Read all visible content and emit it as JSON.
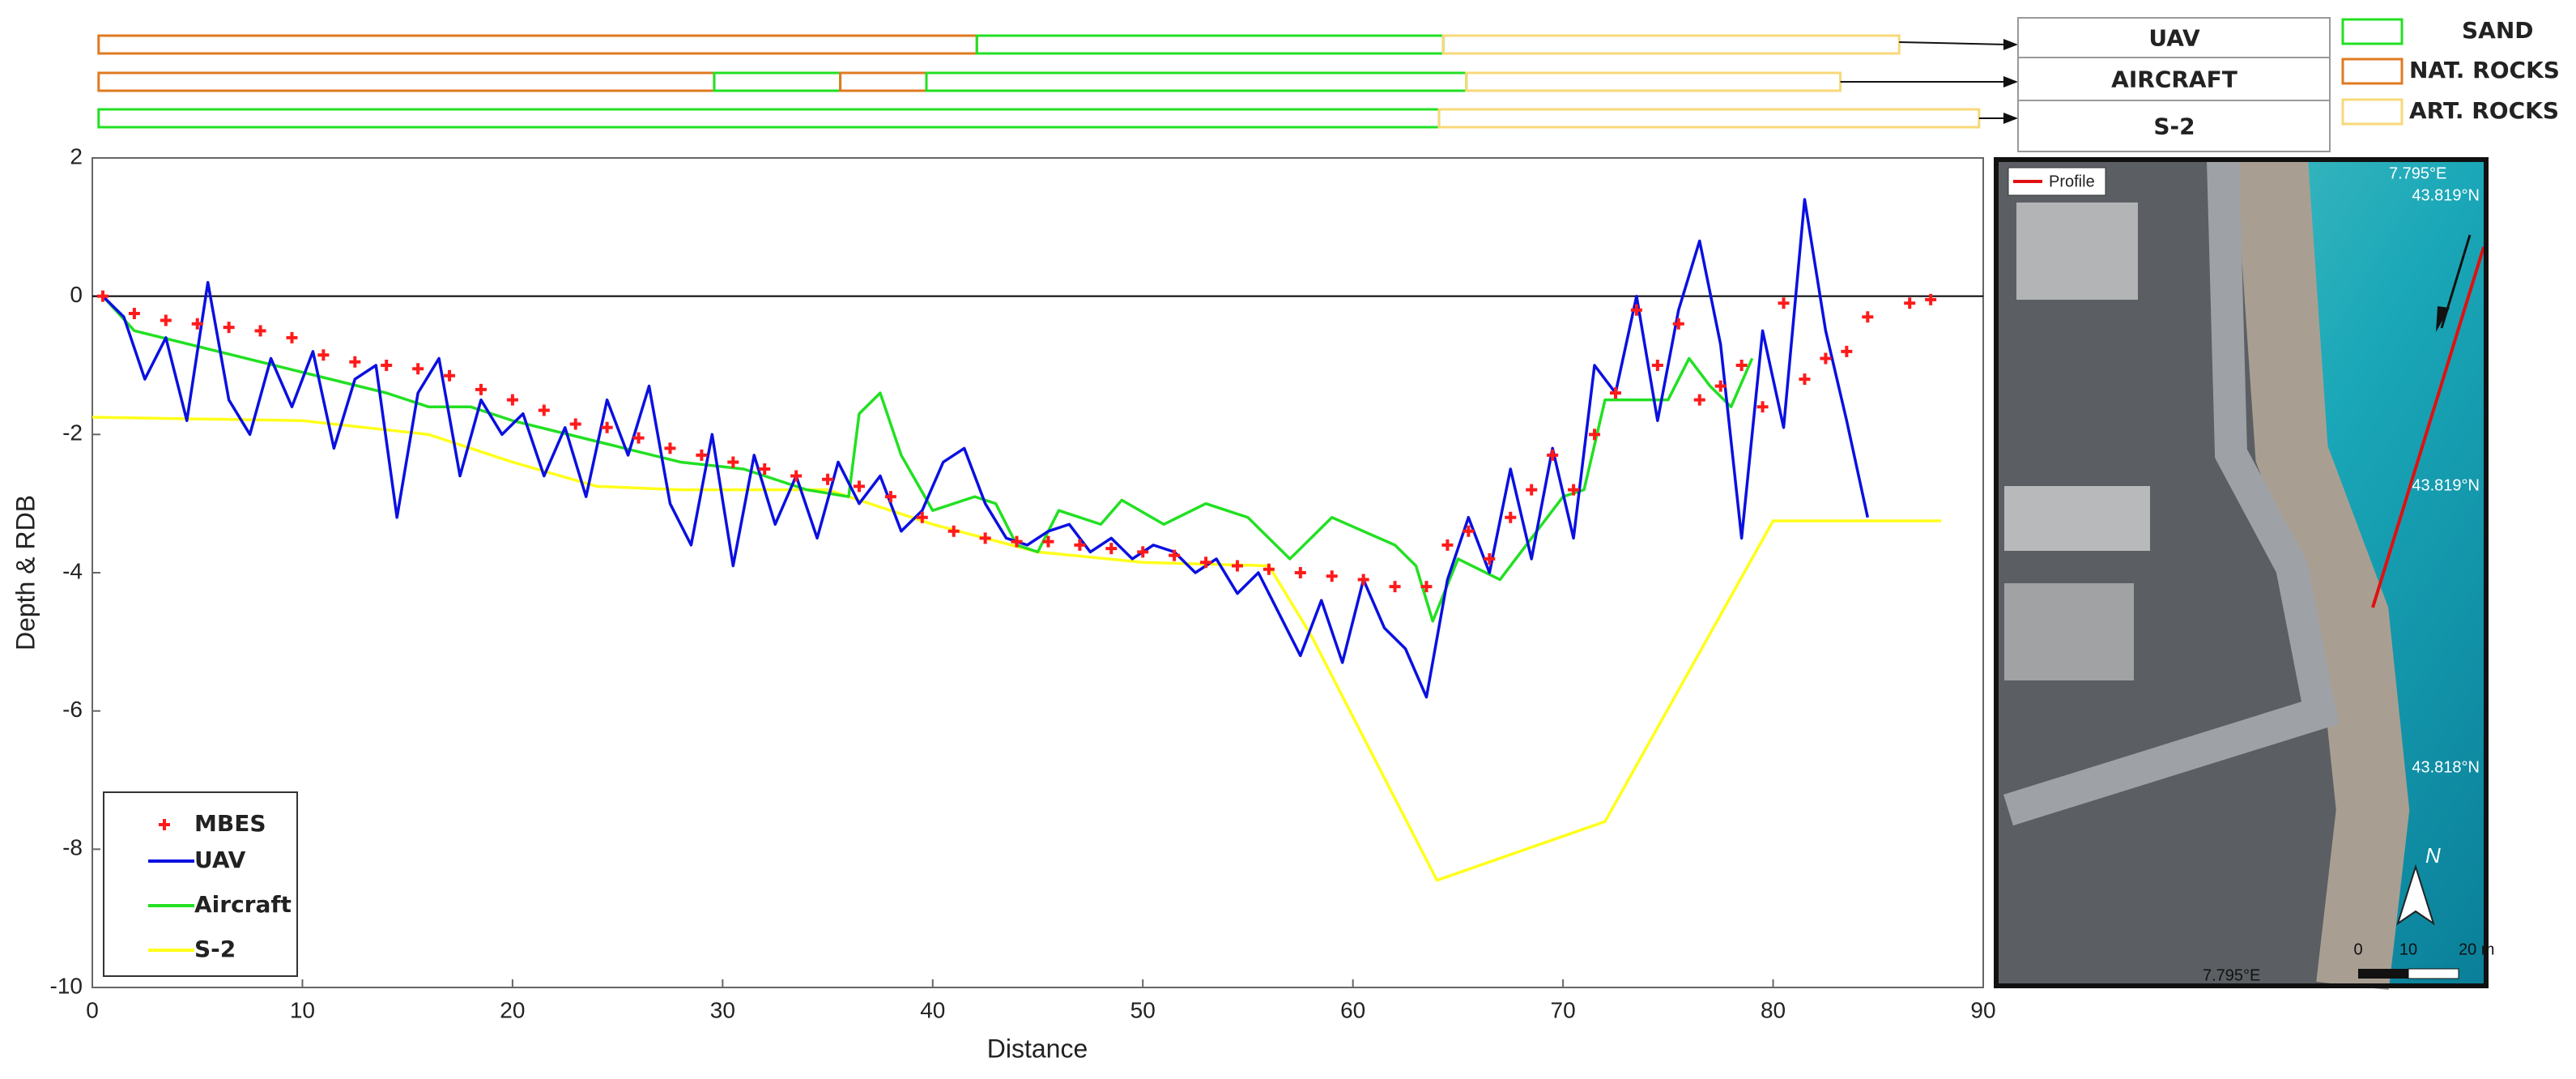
{
  "chart_data": {
    "type": "line",
    "xlabel": "Distance",
    "ylabel": "Depth & RDB",
    "xlim": [
      0,
      90
    ],
    "xticks": [
      0,
      10,
      20,
      30,
      40,
      50,
      60,
      70,
      80,
      90
    ],
    "ylim": [
      -10,
      2
    ],
    "yticks": [
      -10,
      -8,
      -6,
      -4,
      -2,
      0,
      2
    ],
    "zero_line": true,
    "legend": "lower left",
    "series": [
      {
        "name": "MBES",
        "color": "#ff1a1a",
        "mode": "markers",
        "x": [
          0.5,
          2,
          3.5,
          5,
          6.5,
          8,
          9.5,
          11,
          12.5,
          14,
          15.5,
          17,
          18.5,
          20,
          21.5,
          23,
          24.5,
          26,
          27.5,
          29,
          30.5,
          32,
          33.5,
          35,
          36.5,
          38,
          39.5,
          41,
          42.5,
          44,
          45.5,
          47,
          48.5,
          50,
          51.5,
          53,
          54.5,
          56,
          57.5,
          59,
          60.5,
          62,
          63.5,
          64.5,
          65.5,
          66.5,
          67.5,
          68.5,
          69.5,
          70.5,
          71.5,
          72.5,
          73.5,
          74.5,
          75.5,
          76.5,
          77.5,
          78.5,
          79.5,
          80.5,
          81.5,
          82.5,
          83.5,
          84.5,
          86.5,
          87.5
        ],
        "values": [
          0,
          -0.25,
          -0.35,
          -0.4,
          -0.45,
          -0.5,
          -0.6,
          -0.85,
          -0.95,
          -1.0,
          -1.05,
          -1.15,
          -1.35,
          -1.5,
          -1.65,
          -1.85,
          -1.9,
          -2.05,
          -2.2,
          -2.3,
          -2.4,
          -2.5,
          -2.6,
          -2.65,
          -2.75,
          -2.9,
          -3.2,
          -3.4,
          -3.5,
          -3.55,
          -3.55,
          -3.6,
          -3.65,
          -3.7,
          -3.75,
          -3.85,
          -3.9,
          -3.95,
          -4.0,
          -4.05,
          -4.1,
          -4.2,
          -4.2,
          -3.6,
          -3.4,
          -3.8,
          -3.2,
          -2.8,
          -2.3,
          -2.8,
          -2.0,
          -1.4,
          -0.2,
          -1.0,
          -0.4,
          -1.5,
          -1.3,
          -1.0,
          -1.6,
          -0.1,
          -1.2,
          -0.9,
          -0.8,
          -0.3,
          -0.1,
          -0.05
        ]
      },
      {
        "name": "UAV",
        "color": "#0a10e0",
        "mode": "line",
        "x": [
          0.5,
          1.5,
          2.5,
          3.5,
          4.5,
          5.5,
          6.5,
          7.5,
          8.5,
          9.5,
          10.5,
          11.5,
          12.5,
          13.5,
          14.5,
          15.5,
          16.5,
          17.5,
          18.5,
          19.5,
          20.5,
          21.5,
          22.5,
          23.5,
          24.5,
          25.5,
          26.5,
          27.5,
          28.5,
          29.5,
          30.5,
          31.5,
          32.5,
          33.5,
          34.5,
          35.5,
          36.5,
          37.5,
          38.5,
          39.5,
          40.5,
          41.5,
          42.5,
          43.5,
          44.5,
          45.5,
          46.5,
          47.5,
          48.5,
          49.5,
          50.5,
          51.5,
          52.5,
          53.5,
          54.5,
          55.5,
          56.5,
          57.5,
          58.5,
          59.5,
          60.5,
          61.5,
          62.5,
          63.5,
          64.5,
          65.5,
          66.5,
          67.5,
          68.5,
          69.5,
          70.5,
          71.5,
          72.5,
          73.5,
          74.5,
          75.5,
          76.5,
          77.5,
          78.5,
          79.5,
          80.5,
          81.5,
          82.5,
          83.5,
          84.5
        ],
        "values": [
          0,
          -0.3,
          -1.2,
          -0.6,
          -1.8,
          0.2,
          -1.5,
          -2.0,
          -0.9,
          -1.6,
          -0.8,
          -2.2,
          -1.2,
          -1.0,
          -3.2,
          -1.4,
          -0.9,
          -2.6,
          -1.5,
          -2.0,
          -1.7,
          -2.6,
          -1.9,
          -2.9,
          -1.5,
          -2.3,
          -1.3,
          -3.0,
          -3.6,
          -2.0,
          -3.9,
          -2.3,
          -3.3,
          -2.6,
          -3.5,
          -2.4,
          -3.0,
          -2.6,
          -3.4,
          -3.1,
          -2.4,
          -2.2,
          -3.0,
          -3.5,
          -3.6,
          -3.4,
          -3.3,
          -3.7,
          -3.5,
          -3.8,
          -3.6,
          -3.7,
          -4.0,
          -3.8,
          -4.3,
          -4.0,
          -4.6,
          -5.2,
          -4.4,
          -5.3,
          -4.1,
          -4.8,
          -5.1,
          -5.8,
          -4.1,
          -3.2,
          -4.0,
          -2.5,
          -3.8,
          -2.2,
          -3.5,
          -1.0,
          -1.4,
          0.0,
          -1.8,
          -0.2,
          0.8,
          -0.7,
          -3.5,
          -0.5,
          -1.9,
          1.4,
          -0.5,
          -1.8,
          -3.2
        ]
      },
      {
        "name": "Aircraft",
        "color": "#22e022",
        "mode": "line",
        "x": [
          0.5,
          2,
          6,
          10,
          14,
          16,
          18,
          20,
          24,
          28,
          31,
          34,
          36,
          36.5,
          37.5,
          38.5,
          40,
          42,
          43,
          44,
          45,
          46,
          48,
          49,
          51,
          53,
          55,
          57,
          59,
          62,
          63,
          63.8,
          65,
          67,
          70,
          71,
          72,
          75,
          76,
          77,
          78,
          79
        ],
        "values": [
          0,
          -0.5,
          -0.8,
          -1.1,
          -1.4,
          -1.6,
          -1.6,
          -1.8,
          -2.1,
          -2.4,
          -2.5,
          -2.8,
          -2.9,
          -1.7,
          -1.4,
          -2.3,
          -3.1,
          -2.9,
          -3.0,
          -3.6,
          -3.7,
          -3.1,
          -3.3,
          -2.95,
          -3.3,
          -3.0,
          -3.2,
          -3.8,
          -3.2,
          -3.6,
          -3.9,
          -4.7,
          -3.8,
          -4.1,
          -2.9,
          -2.8,
          -1.5,
          -1.5,
          -0.9,
          -1.3,
          -1.6,
          -0.9
        ]
      },
      {
        "name": "S-2",
        "color": "#ffff1a",
        "mode": "line",
        "x": [
          0,
          10,
          16,
          20,
          24,
          28,
          35,
          40,
          45,
          50,
          56,
          58,
          64,
          72,
          80,
          88
        ],
        "values": [
          -1.75,
          -1.8,
          -2.0,
          -2.4,
          -2.75,
          -2.8,
          -2.8,
          -3.3,
          -3.7,
          -3.85,
          -3.9,
          -4.9,
          -8.45,
          -7.6,
          -3.25,
          -3.25
        ]
      }
    ]
  },
  "profile_strips": {
    "rows": [
      {
        "label": "UAV",
        "segments": [
          {
            "start": 0.3,
            "end": 42.1,
            "color": "#e07a20"
          },
          {
            "start": 42.1,
            "end": 64.3,
            "color": "#22e022"
          },
          {
            "start": 64.3,
            "end": 86,
            "color": "#f8d878"
          }
        ]
      },
      {
        "label": "AIRCRAFT",
        "segments": [
          {
            "start": 0.3,
            "end": 29.6,
            "color": "#e07a20"
          },
          {
            "start": 29.6,
            "end": 35.6,
            "color": "#22e022"
          },
          {
            "start": 35.6,
            "end": 39.7,
            "color": "#e07a20"
          },
          {
            "start": 39.7,
            "end": 65.4,
            "color": "#22e022"
          },
          {
            "start": 65.4,
            "end": 83.2,
            "color": "#f8d878"
          }
        ]
      },
      {
        "label": "S-2",
        "segments": [
          {
            "start": 0.3,
            "end": 64.1,
            "color": "#22e022"
          },
          {
            "start": 64.1,
            "end": 89.8,
            "color": "#f8d878"
          }
        ]
      }
    ],
    "legend": [
      {
        "label": "SAND",
        "color": "#22e022"
      },
      {
        "label": "NAT. ROCKS",
        "color": "#e07a20"
      },
      {
        "label": "ART. ROCKS",
        "color": "#f8d878"
      }
    ]
  },
  "map": {
    "legend": "Profile",
    "top_lon": "7.795°E",
    "right_lats": [
      "43.819°N",
      "43.819°N",
      "43.818°N"
    ],
    "bottom_lon": "7.795°E",
    "north": "N",
    "scale_labels": [
      "0",
      "10",
      "20 m"
    ]
  }
}
